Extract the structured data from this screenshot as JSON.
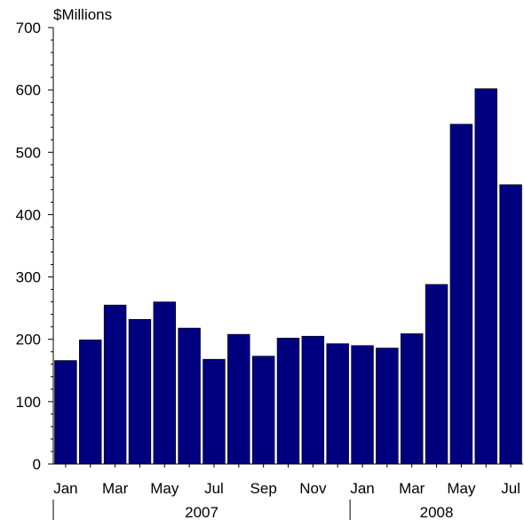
{
  "chart_data": {
    "type": "bar",
    "ylabel": "$Millions",
    "ylim": [
      0,
      700
    ],
    "yticks": [
      0,
      100,
      200,
      300,
      400,
      500,
      600,
      700
    ],
    "grid": false,
    "bar_color": "#00007f",
    "categories": [
      "Jan 2007",
      "Feb 2007",
      "Mar 2007",
      "Apr 2007",
      "May 2007",
      "Jun 2007",
      "Jul 2007",
      "Aug 2007",
      "Sep 2007",
      "Oct 2007",
      "Nov 2007",
      "Dec 2007",
      "Jan 2008",
      "Feb 2008",
      "Mar 2008",
      "Apr 2008",
      "May 2008",
      "Jun 2008",
      "Jul 2008"
    ],
    "values": [
      166,
      199,
      255,
      232,
      260,
      218,
      168,
      208,
      173,
      202,
      205,
      193,
      190,
      186,
      209,
      288,
      545,
      602,
      448
    ],
    "x_tick_labels": [
      {
        "index": 0,
        "label": "Jan"
      },
      {
        "index": 2,
        "label": "Mar"
      },
      {
        "index": 4,
        "label": "May"
      },
      {
        "index": 6,
        "label": "Jul"
      },
      {
        "index": 8,
        "label": "Sep"
      },
      {
        "index": 10,
        "label": "Nov"
      },
      {
        "index": 12,
        "label": "Jan"
      },
      {
        "index": 14,
        "label": "Mar"
      },
      {
        "index": 16,
        "label": "May"
      },
      {
        "index": 18,
        "label": "Jul"
      }
    ],
    "years": [
      {
        "label": "2007",
        "start": 0,
        "end": 11
      },
      {
        "label": "2008",
        "start": 12,
        "end": 18
      }
    ]
  }
}
